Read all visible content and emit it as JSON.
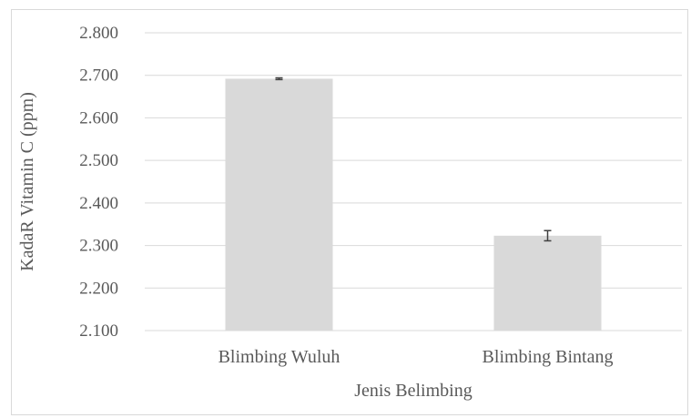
{
  "chart_data": {
    "type": "bar",
    "title": "",
    "xlabel": "Jenis Belimbing",
    "ylabel": "KadaR Vitamin C (ppm)",
    "categories": [
      "Blimbing Wuluh",
      "Blimbing Bintang"
    ],
    "series": [
      {
        "values": [
          2.692,
          2.323
        ],
        "error": [
          0.002,
          0.012
        ]
      }
    ],
    "ylim": [
      2.1,
      2.8
    ],
    "yticks": [
      2.1,
      2.2,
      2.3,
      2.4,
      2.5,
      2.6,
      2.7,
      2.8
    ],
    "ytick_labels": [
      "2.100",
      "2.200",
      "2.300",
      "2.400",
      "2.500",
      "2.600",
      "2.700",
      "2.800"
    ],
    "grid": true,
    "legend": "none",
    "bar_color": "#d9d9d9",
    "grid_color": "#d9d9d9",
    "error_bar_color": "#404040",
    "text_color": "#595959"
  }
}
